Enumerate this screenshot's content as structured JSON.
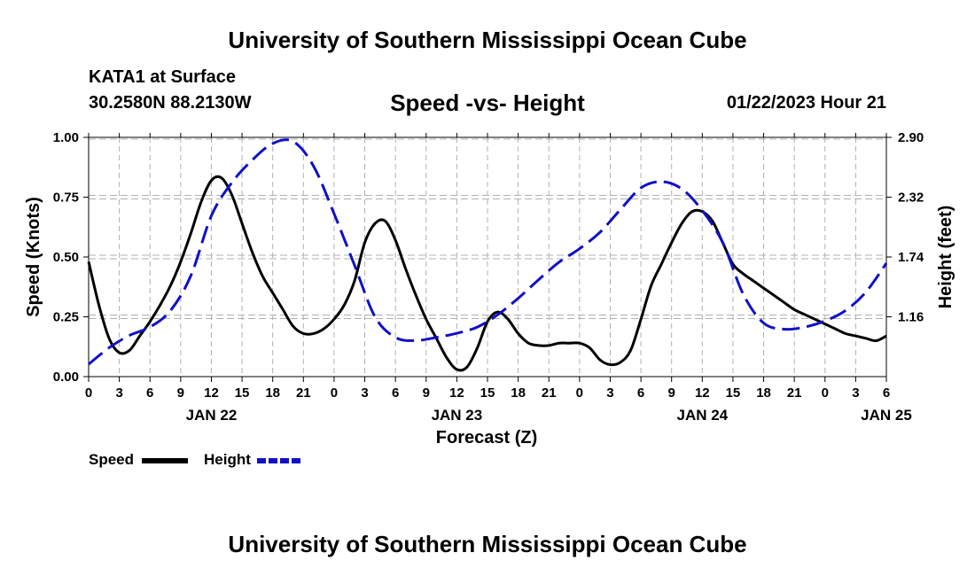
{
  "header": {
    "title": "University of Southern Mississippi Ocean Cube",
    "station": "KATA1 at Surface",
    "coords": "30.2580N  88.2130W",
    "subtitle": "Speed -vs- Height",
    "datetime": "01/22/2023 Hour 21",
    "footer_title": "University of Southern Mississippi Ocean Cube"
  },
  "colors": {
    "speed": "#000000",
    "height": "#1010c8",
    "grid": "#b0b0b0"
  },
  "chart_data": {
    "type": "line",
    "title": "Speed -vs- Height",
    "xlabel": "Forecast (Z)",
    "ylabel": "Speed (Knots)",
    "y2label": "Height (feet)",
    "xlim": [
      0,
      78
    ],
    "ylim": [
      0,
      1
    ],
    "y2lim": [
      0.58,
      2.9
    ],
    "x_tick_labels": [
      "0",
      "3",
      "6",
      "9",
      "12",
      "15",
      "18",
      "21",
      "0",
      "3",
      "6",
      "9",
      "12",
      "15",
      "18",
      "21",
      "0",
      "3",
      "6",
      "9",
      "12",
      "15",
      "18",
      "21",
      "0",
      "3",
      "6"
    ],
    "date_labels": [
      {
        "x": 12,
        "label": "JAN 22"
      },
      {
        "x": 36,
        "label": "JAN 23"
      },
      {
        "x": 60,
        "label": "JAN 24"
      },
      {
        "x": 78,
        "label": "JAN 25"
      }
    ],
    "y_ticks": [
      "0.00",
      "0.25",
      "0.50",
      "0.75",
      "1.00"
    ],
    "y2_ticks": [
      "1.16",
      "1.74",
      "2.32",
      "2.90"
    ],
    "grid": true,
    "series": [
      {
        "name": "Speed",
        "axis": "left",
        "style": "solid",
        "x": [
          0,
          1,
          2,
          3,
          4,
          5,
          6,
          7,
          8,
          9,
          10,
          11,
          12,
          13,
          14,
          15,
          16,
          17,
          18,
          19,
          20,
          21,
          22,
          23,
          24,
          25,
          26,
          27,
          28,
          29,
          30,
          31,
          32,
          33,
          34,
          35,
          36,
          37,
          38,
          39,
          40,
          41,
          42,
          43,
          44,
          45,
          46,
          47,
          48,
          49,
          50,
          51,
          52,
          53,
          54,
          55,
          56,
          57,
          58,
          59,
          60,
          61,
          62,
          63,
          64,
          65,
          66,
          67,
          68,
          69,
          70,
          71,
          72,
          73,
          74,
          75,
          76,
          77,
          78
        ],
        "values": [
          0.48,
          0.3,
          0.16,
          0.1,
          0.11,
          0.17,
          0.23,
          0.3,
          0.38,
          0.48,
          0.6,
          0.73,
          0.82,
          0.83,
          0.76,
          0.64,
          0.52,
          0.42,
          0.35,
          0.28,
          0.21,
          0.18,
          0.18,
          0.2,
          0.24,
          0.3,
          0.4,
          0.56,
          0.64,
          0.65,
          0.57,
          0.45,
          0.34,
          0.24,
          0.16,
          0.08,
          0.03,
          0.04,
          0.12,
          0.23,
          0.27,
          0.24,
          0.18,
          0.14,
          0.13,
          0.13,
          0.14,
          0.14,
          0.14,
          0.12,
          0.07,
          0.05,
          0.06,
          0.11,
          0.24,
          0.38,
          0.47,
          0.56,
          0.64,
          0.69,
          0.69,
          0.65,
          0.56,
          0.47,
          0.43,
          0.4,
          0.37,
          0.34,
          0.31,
          0.28,
          0.26,
          0.24,
          0.22,
          0.2,
          0.18,
          0.17,
          0.16,
          0.15,
          0.17
        ]
      },
      {
        "name": "Height",
        "axis": "right",
        "style": "dashed",
        "x": [
          0,
          2,
          4,
          6,
          8,
          10,
          12,
          14,
          16,
          18,
          20,
          22,
          24,
          26,
          28,
          30,
          32,
          34,
          36,
          38,
          40,
          42,
          44,
          46,
          48,
          50,
          52,
          54,
          56,
          58,
          60,
          62,
          64,
          66,
          68,
          70,
          72,
          74,
          76,
          78
        ],
        "values": [
          0.7,
          0.86,
          0.98,
          1.06,
          1.22,
          1.56,
          2.14,
          2.46,
          2.68,
          2.84,
          2.86,
          2.62,
          2.16,
          1.66,
          1.16,
          0.96,
          0.93,
          0.96,
          1.0,
          1.06,
          1.18,
          1.34,
          1.52,
          1.69,
          1.82,
          1.98,
          2.2,
          2.41,
          2.47,
          2.4,
          2.19,
          1.88,
          1.38,
          1.1,
          1.04,
          1.06,
          1.12,
          1.22,
          1.4,
          1.68
        ]
      }
    ]
  },
  "legend": {
    "speed_label": "Speed",
    "height_label": "Height"
  }
}
